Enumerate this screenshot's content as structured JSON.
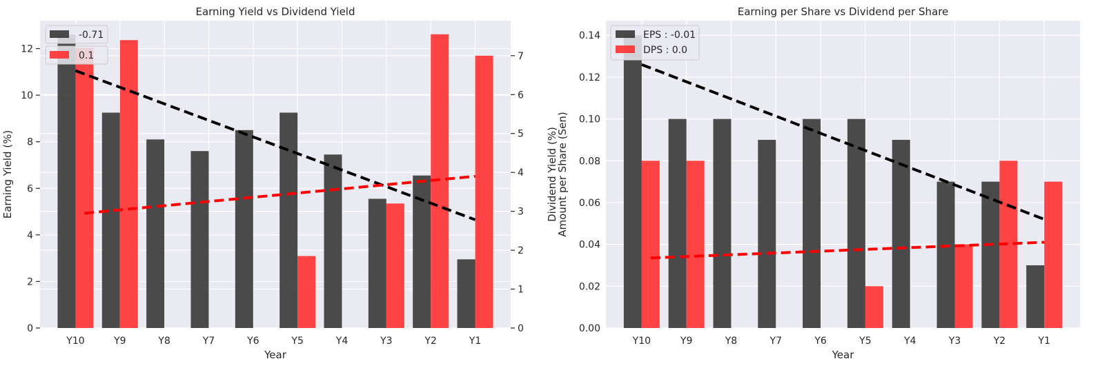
{
  "chart_data": [
    {
      "type": "bar",
      "title": "Earning Yield vs Dividend Yield",
      "xlabel": "Year",
      "ylabel": "Earning Yield (%)",
      "ylabel_right": "Dividend Yield (%)",
      "categories": [
        "Y10",
        "Y9",
        "Y8",
        "Y7",
        "Y6",
        "Y5",
        "Y4",
        "Y3",
        "Y2",
        "Y1"
      ],
      "ylim": [
        0,
        13.2
      ],
      "yticks": [
        "0",
        "2",
        "4",
        "6",
        "8",
        "10",
        "12"
      ],
      "ylim_right": [
        0,
        7.9
      ],
      "yticks_right": [
        "0",
        "1",
        "2",
        "3",
        "4",
        "5",
        "6",
        "7"
      ],
      "grid": true,
      "legend_position": "top-left",
      "series": [
        {
          "name": "-0.71",
          "axis": "left",
          "color": "#333333",
          "values": [
            12.6,
            9.25,
            8.1,
            7.6,
            8.5,
            9.25,
            7.45,
            5.55,
            6.55,
            2.95
          ]
        },
        {
          "name": "0.1",
          "axis": "right",
          "color": "#ff2b2b",
          "values": [
            7.2,
            7.4,
            0,
            0,
            0,
            1.85,
            0,
            3.2,
            7.55,
            7.0
          ]
        }
      ],
      "trendlines": [
        {
          "axis": "left",
          "color": "#000000",
          "from": [
            0,
            11.05
          ],
          "to": [
            9,
            4.65
          ]
        },
        {
          "axis": "right",
          "color": "#ff0000",
          "from": [
            0.2,
            2.95
          ],
          "to": [
            9,
            3.9
          ]
        }
      ]
    },
    {
      "type": "bar",
      "title": "Earning per Share vs Dividend per Share",
      "xlabel": "Year",
      "ylabel": "Amount per Share (Sen)",
      "categories": [
        "Y10",
        "Y9",
        "Y8",
        "Y7",
        "Y6",
        "Y5",
        "Y4",
        "Y3",
        "Y2",
        "Y1"
      ],
      "ylim": [
        0,
        0.147
      ],
      "yticks": [
        "0.00",
        "0.02",
        "0.04",
        "0.06",
        "0.08",
        "0.10",
        "0.12",
        "0.14"
      ],
      "grid": true,
      "legend_position": "top-left",
      "series": [
        {
          "name": "EPS : -0.01",
          "color": "#333333",
          "values": [
            0.14,
            0.1,
            0.1,
            0.09,
            0.1,
            0.1,
            0.09,
            0.07,
            0.07,
            0.03
          ]
        },
        {
          "name": "DPS : 0.0",
          "color": "#ff2b2b",
          "values": [
            0.08,
            0.08,
            0,
            0,
            0,
            0.02,
            0,
            0.04,
            0.08,
            0.07
          ]
        }
      ],
      "trendlines": [
        {
          "color": "#000000",
          "from": [
            0,
            0.126
          ],
          "to": [
            9,
            0.052
          ]
        },
        {
          "color": "#ff0000",
          "from": [
            0.2,
            0.0335
          ],
          "to": [
            9,
            0.041
          ]
        }
      ]
    }
  ]
}
